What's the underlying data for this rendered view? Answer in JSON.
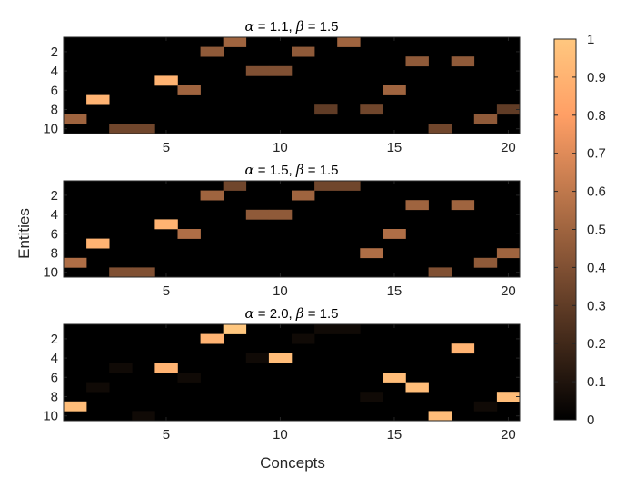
{
  "figure": {
    "ylabel": "Entities",
    "xlabel": "Concepts"
  },
  "colorbar": {
    "colormap": "copper",
    "range": [
      0,
      1
    ],
    "tick_values": [
      0,
      0.1,
      0.2,
      0.3,
      0.4,
      0.5,
      0.6,
      0.7,
      0.8,
      0.9,
      1
    ],
    "tick_labels": [
      "0",
      "0.1",
      "0.2",
      "0.3",
      "0.4",
      "0.5",
      "0.6",
      "0.7",
      "0.8",
      "0.9",
      "1"
    ]
  },
  "chart_data": [
    {
      "type": "heatmap",
      "title": "α = 1.1, β = 1.5",
      "title_parts": {
        "a_sym": "α",
        "a_val": " = 1.1, ",
        "b_sym": "β",
        "b_val": " = 1.5"
      },
      "x_range": [
        1,
        20
      ],
      "y_range": [
        1,
        10
      ],
      "x_ticks": [
        5,
        10,
        15,
        20
      ],
      "y_ticks": [
        2,
        4,
        6,
        8,
        10
      ],
      "cells": [
        {
          "x": 8,
          "y": 1,
          "v": 0.5
        },
        {
          "x": 13,
          "y": 1,
          "v": 0.5
        },
        {
          "x": 7,
          "y": 2,
          "v": 0.45
        },
        {
          "x": 11,
          "y": 2,
          "v": 0.45
        },
        {
          "x": 16,
          "y": 3,
          "v": 0.45
        },
        {
          "x": 18,
          "y": 3,
          "v": 0.45
        },
        {
          "x": 9,
          "y": 4,
          "v": 0.4
        },
        {
          "x": 10,
          "y": 4,
          "v": 0.4
        },
        {
          "x": 5,
          "y": 5,
          "v": 0.9
        },
        {
          "x": 6,
          "y": 6,
          "v": 0.5
        },
        {
          "x": 15,
          "y": 6,
          "v": 0.5
        },
        {
          "x": 2,
          "y": 7,
          "v": 0.9
        },
        {
          "x": 12,
          "y": 8,
          "v": 0.3
        },
        {
          "x": 14,
          "y": 8,
          "v": 0.35
        },
        {
          "x": 20,
          "y": 8,
          "v": 0.3
        },
        {
          "x": 1,
          "y": 9,
          "v": 0.5
        },
        {
          "x": 19,
          "y": 9,
          "v": 0.45
        },
        {
          "x": 3,
          "y": 10,
          "v": 0.35
        },
        {
          "x": 4,
          "y": 10,
          "v": 0.35
        },
        {
          "x": 17,
          "y": 10,
          "v": 0.35
        }
      ]
    },
    {
      "type": "heatmap",
      "title": "α = 1.5, β = 1.5",
      "title_parts": {
        "a_sym": "α",
        "a_val": " = 1.5, ",
        "b_sym": "β",
        "b_val": " = 1.5"
      },
      "x_range": [
        1,
        20
      ],
      "y_range": [
        1,
        10
      ],
      "x_ticks": [
        5,
        10,
        15,
        20
      ],
      "y_ticks": [
        2,
        4,
        6,
        8,
        10
      ],
      "cells": [
        {
          "x": 8,
          "y": 1,
          "v": 0.35
        },
        {
          "x": 12,
          "y": 1,
          "v": 0.35
        },
        {
          "x": 13,
          "y": 1,
          "v": 0.35
        },
        {
          "x": 7,
          "y": 2,
          "v": 0.5
        },
        {
          "x": 11,
          "y": 2,
          "v": 0.5
        },
        {
          "x": 16,
          "y": 3,
          "v": 0.5
        },
        {
          "x": 18,
          "y": 3,
          "v": 0.5
        },
        {
          "x": 9,
          "y": 4,
          "v": 0.45
        },
        {
          "x": 10,
          "y": 4,
          "v": 0.45
        },
        {
          "x": 5,
          "y": 5,
          "v": 0.9
        },
        {
          "x": 6,
          "y": 6,
          "v": 0.55
        },
        {
          "x": 15,
          "y": 6,
          "v": 0.55
        },
        {
          "x": 2,
          "y": 7,
          "v": 0.9
        },
        {
          "x": 14,
          "y": 8,
          "v": 0.55
        },
        {
          "x": 20,
          "y": 8,
          "v": 0.5
        },
        {
          "x": 1,
          "y": 9,
          "v": 0.55
        },
        {
          "x": 19,
          "y": 9,
          "v": 0.45
        },
        {
          "x": 3,
          "y": 10,
          "v": 0.4
        },
        {
          "x": 4,
          "y": 10,
          "v": 0.4
        },
        {
          "x": 17,
          "y": 10,
          "v": 0.4
        }
      ]
    },
    {
      "type": "heatmap",
      "title": "α = 2.0, β = 1.5",
      "title_parts": {
        "a_sym": "α",
        "a_val": " = 2.0, ",
        "b_sym": "β",
        "b_val": " = 1.5"
      },
      "x_range": [
        1,
        20
      ],
      "y_range": [
        1,
        10
      ],
      "x_ticks": [
        5,
        10,
        15,
        20
      ],
      "y_ticks": [
        2,
        4,
        6,
        8,
        10
      ],
      "cells": [
        {
          "x": 8,
          "y": 1,
          "v": 1.0
        },
        {
          "x": 12,
          "y": 1,
          "v": 0.05
        },
        {
          "x": 13,
          "y": 1,
          "v": 0.05
        },
        {
          "x": 7,
          "y": 2,
          "v": 0.9
        },
        {
          "x": 11,
          "y": 2,
          "v": 0.05
        },
        {
          "x": 18,
          "y": 3,
          "v": 0.9
        },
        {
          "x": 9,
          "y": 4,
          "v": 0.05
        },
        {
          "x": 10,
          "y": 4,
          "v": 0.95
        },
        {
          "x": 3,
          "y": 5,
          "v": 0.05
        },
        {
          "x": 5,
          "y": 5,
          "v": 0.9
        },
        {
          "x": 6,
          "y": 6,
          "v": 0.05
        },
        {
          "x": 15,
          "y": 6,
          "v": 0.95
        },
        {
          "x": 2,
          "y": 7,
          "v": 0.05
        },
        {
          "x": 16,
          "y": 7,
          "v": 0.95
        },
        {
          "x": 14,
          "y": 8,
          "v": 0.05
        },
        {
          "x": 20,
          "y": 8,
          "v": 0.95
        },
        {
          "x": 1,
          "y": 9,
          "v": 0.95
        },
        {
          "x": 19,
          "y": 9,
          "v": 0.05
        },
        {
          "x": 4,
          "y": 10,
          "v": 0.05
        },
        {
          "x": 17,
          "y": 10,
          "v": 0.95
        }
      ]
    }
  ]
}
